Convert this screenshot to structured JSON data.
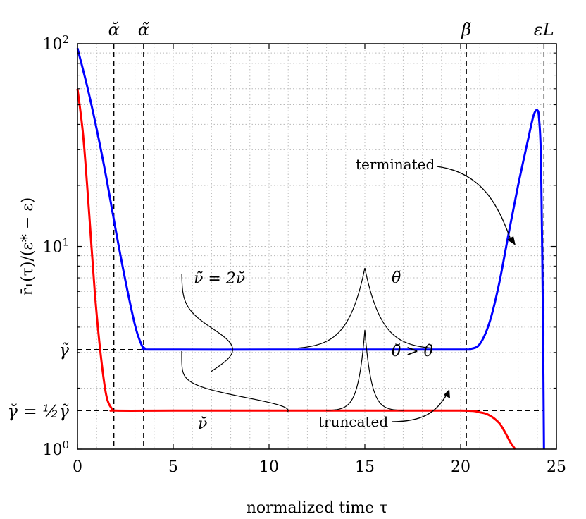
{
  "chart_data": {
    "type": "line",
    "xlabel": "normalized time τ",
    "ylabel": "r̄₁(τ)/(ε* − ε)",
    "xlim": [
      0,
      25
    ],
    "ylim": [
      1,
      100
    ],
    "yscale": "log",
    "grid": true,
    "x_ticks": [
      0,
      5,
      10,
      15,
      20,
      25
    ],
    "x_tick_labels": [
      "0",
      "5",
      "10",
      "15",
      "20",
      "25"
    ],
    "y_ticks": [
      1,
      10,
      100
    ],
    "y_tick_labels": [
      "10^0",
      "10^1",
      "10^2"
    ],
    "y_tick_base": "10",
    "y_tick_exps": [
      "0",
      "1",
      "2"
    ],
    "series": [
      {
        "color": "#0000ff",
        "points": [
          [
            0,
            95
          ],
          [
            0.5,
            62
          ],
          [
            1,
            38
          ],
          [
            1.5,
            22
          ],
          [
            2,
            12
          ],
          [
            2.5,
            6.8
          ],
          [
            3,
            4.1
          ],
          [
            3.3,
            3.35
          ],
          [
            3.5,
            3.15
          ],
          [
            4,
            3.1
          ],
          [
            10,
            3.1
          ],
          [
            15,
            3.1
          ],
          [
            20,
            3.1
          ],
          [
            20.5,
            3.12
          ],
          [
            21,
            3.3
          ],
          [
            21.5,
            4.2
          ],
          [
            22,
            6.5
          ],
          [
            22.5,
            11.5
          ],
          [
            23,
            20
          ],
          [
            23.5,
            33
          ],
          [
            23.8,
            44
          ],
          [
            24,
            47
          ],
          [
            24.1,
            42
          ],
          [
            24.2,
            25
          ],
          [
            24.3,
            4
          ],
          [
            24.35,
            1
          ]
        ]
      },
      {
        "color": "#ff0000",
        "points": [
          [
            0,
            60
          ],
          [
            0.3,
            35
          ],
          [
            0.6,
            15
          ],
          [
            0.9,
            6
          ],
          [
            1.2,
            3
          ],
          [
            1.5,
            1.85
          ],
          [
            1.8,
            1.58
          ],
          [
            2.0,
            1.55
          ],
          [
            5,
            1.55
          ],
          [
            10,
            1.55
          ],
          [
            15,
            1.55
          ],
          [
            20,
            1.55
          ],
          [
            21,
            1.52
          ],
          [
            21.5,
            1.47
          ],
          [
            22,
            1.35
          ],
          [
            22.3,
            1.22
          ],
          [
            22.6,
            1.08
          ],
          [
            22.85,
            1.0
          ]
        ]
      }
    ],
    "vlines": [
      {
        "x": 1.9,
        "label": "ᾰ",
        "label_alt": "ᾰ"
      },
      {
        "x": 3.45,
        "label": "α̃"
      },
      {
        "x": 20.3,
        "label": "β̃"
      },
      {
        "x": 24.35,
        "label": "εL"
      }
    ],
    "hlines": [
      {
        "y": 3.1,
        "x_end": 20.3,
        "label": "γ̃"
      },
      {
        "y": 1.55,
        "x_end": 24.35,
        "label": "γ̆ = ½γ̃"
      }
    ],
    "annotations": {
      "terminated": "terminated",
      "truncated": "truncated",
      "nu_relation": "ν̃ = 2ν̆",
      "nu_breve": "ν̆",
      "theta_tilde": "θ̃",
      "theta_relation": "θ̆ > θ̃"
    }
  }
}
